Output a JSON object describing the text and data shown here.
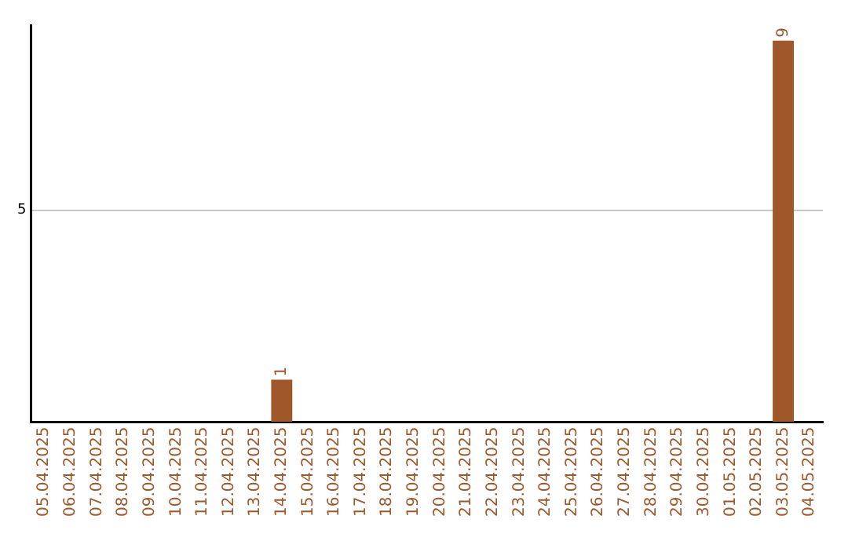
{
  "chart_data": {
    "type": "bar",
    "categories": [
      "05.04.2025",
      "06.04.2025",
      "07.04.2025",
      "08.04.2025",
      "09.04.2025",
      "10.04.2025",
      "11.04.2025",
      "12.04.2025",
      "13.04.2025",
      "14.04.2025",
      "15.04.2025",
      "16.04.2025",
      "17.04.2025",
      "18.04.2025",
      "19.04.2025",
      "20.04.2025",
      "21.04.2025",
      "22.04.2025",
      "23.04.2025",
      "24.04.2025",
      "25.04.2025",
      "26.04.2025",
      "27.04.2025",
      "28.04.2025",
      "29.04.2025",
      "30.04.2025",
      "01.05.2025",
      "02.05.2025",
      "03.05.2025",
      "04.05.2025"
    ],
    "values": [
      0,
      0,
      0,
      0,
      0,
      0,
      0,
      0,
      0,
      1,
      0,
      0,
      0,
      0,
      0,
      0,
      0,
      0,
      0,
      0,
      0,
      0,
      0,
      0,
      0,
      0,
      0,
      0,
      9,
      0
    ],
    "value_labels": [
      null,
      null,
      null,
      null,
      null,
      null,
      null,
      null,
      null,
      "1",
      null,
      null,
      null,
      null,
      null,
      null,
      null,
      null,
      null,
      null,
      null,
      null,
      null,
      null,
      null,
      null,
      null,
      null,
      "9",
      null
    ],
    "color": "#a0572a",
    "ylim": [
      0,
      9.35
    ],
    "yticks": [
      5
    ],
    "grid": "y",
    "legend": false
  }
}
